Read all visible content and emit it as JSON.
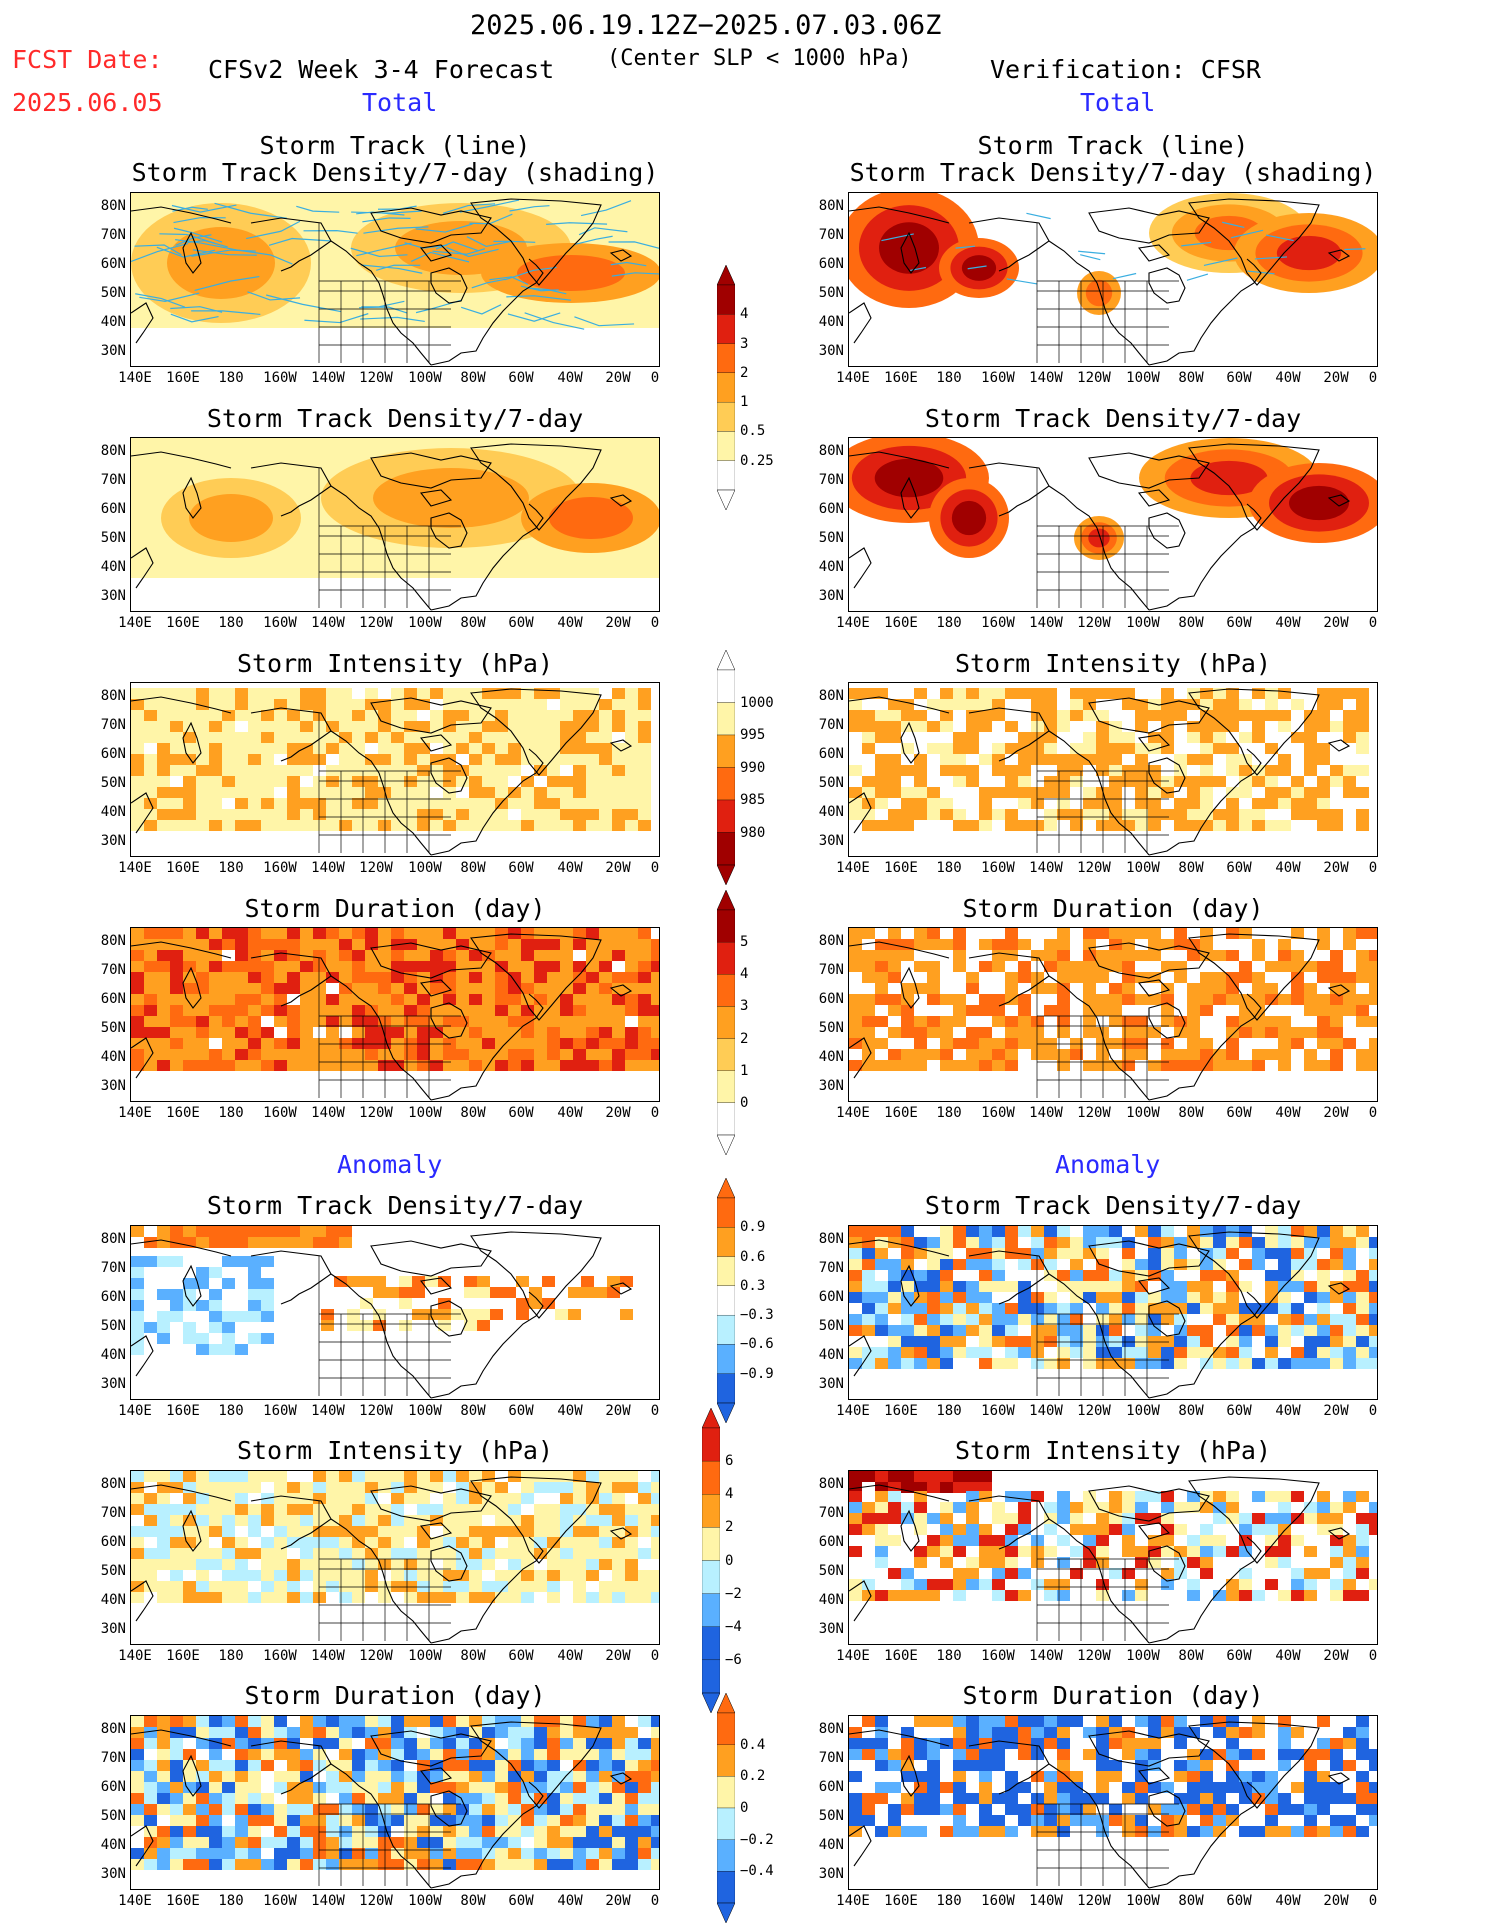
{
  "header": {
    "period": "2025.06.19.12Z−2025.07.03.06Z",
    "fcst_label": "FCST Date:",
    "fcst_date": "2025.06.05",
    "forecast_title": "CFSv2 Week 3-4 Forecast",
    "criterion": "(Center SLP < 1000 hPa)",
    "verification": "Verification: CFSR"
  },
  "sections": {
    "total_left": "Total",
    "total_right": "Total",
    "anomaly_left": "Anomaly",
    "anomaly_right": "Anomaly"
  },
  "titles": {
    "track_line": "Storm Track (line)",
    "track_shading": "Storm Track Density/7-day (shading)",
    "density": "Storm Track Density/7-day",
    "intensity": "Storm Intensity (hPa)",
    "duration": "Storm Duration (day)"
  },
  "axes": {
    "lat_labels": [
      "80N",
      "70N",
      "60N",
      "50N",
      "40N",
      "30N"
    ],
    "lon_labels": [
      "140E",
      "160E",
      "180",
      "160W",
      "140W",
      "120W",
      "100W",
      "80W",
      "60W",
      "40W",
      "20W",
      "0"
    ]
  },
  "colorbars": {
    "density_total": [
      "4",
      "3",
      "2",
      "1",
      "0.5",
      "0.25"
    ],
    "intensity_total": [
      "1000",
      "995",
      "990",
      "985",
      "980"
    ],
    "duration_total": [
      "5",
      "4",
      "3",
      "2",
      "1",
      "0"
    ],
    "density_anom": [
      "0.9",
      "0.6",
      "0.3",
      "−0.3",
      "−0.6",
      "−0.9"
    ],
    "intensity_anom": [
      "6",
      "4",
      "2",
      "0",
      "−2",
      "−4",
      "−6"
    ],
    "duration_anom": [
      "0.4",
      "0.2",
      "0",
      "−0.2",
      "−0.4"
    ]
  },
  "colors": {
    "pale": "#fff5a8",
    "light_orange": "#ffcc55",
    "orange": "#ffa020",
    "dark_orange": "#ff6a10",
    "red": "#e02010",
    "dark_red": "#a00000",
    "light_blue": "#b8f0ff",
    "mid_blue": "#5ab0ff",
    "blue": "#1f64e0",
    "track": "#3aaee0"
  }
}
